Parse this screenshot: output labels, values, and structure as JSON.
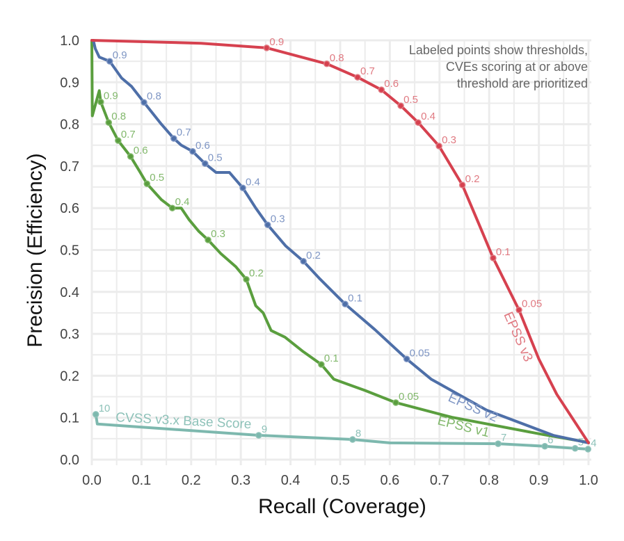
{
  "chart_data": {
    "type": "line",
    "title": "",
    "xlabel": "Recall (Coverage)",
    "ylabel": "Precision (Efficiency)",
    "xlim": [
      0,
      1
    ],
    "ylim": [
      0,
      1
    ],
    "grid": true,
    "xticks": [
      "0.0",
      "0.1",
      "0.2",
      "0.3",
      "0.4",
      "0.5",
      "0.6",
      "0.7",
      "0.8",
      "0.9",
      "1.0"
    ],
    "yticks": [
      "0.0",
      "0.1",
      "0.2",
      "0.3",
      "0.4",
      "0.5",
      "0.6",
      "0.7",
      "0.8",
      "0.9",
      "1.0"
    ],
    "annotation": [
      "Labeled points show thresholds,",
      "CVEs scoring at or above",
      "threshold are prioritized"
    ],
    "series": [
      {
        "name": "EPSS v3",
        "color": "#d6414f",
        "label_color": "#e07a82",
        "line": [
          [
            0,
            1.0
          ],
          [
            0.22,
            0.993
          ],
          [
            0.352,
            0.982
          ],
          [
            0.473,
            0.944
          ],
          [
            0.535,
            0.912
          ],
          [
            0.583,
            0.882
          ],
          [
            0.622,
            0.844
          ],
          [
            0.657,
            0.804
          ],
          [
            0.699,
            0.748
          ],
          [
            0.746,
            0.655
          ],
          [
            0.78,
            0.56
          ],
          [
            0.808,
            0.481
          ],
          [
            0.86,
            0.357
          ],
          [
            0.9,
            0.24
          ],
          [
            0.936,
            0.156
          ],
          [
            1.0,
            0.04
          ]
        ],
        "points": [
          {
            "label": "0.9",
            "x": 0.352,
            "y": 0.982
          },
          {
            "label": "0.8",
            "x": 0.473,
            "y": 0.944
          },
          {
            "label": "0.7",
            "x": 0.535,
            "y": 0.912
          },
          {
            "label": "0.6",
            "x": 0.583,
            "y": 0.882
          },
          {
            "label": "0.5",
            "x": 0.622,
            "y": 0.844
          },
          {
            "label": "0.4",
            "x": 0.657,
            "y": 0.804
          },
          {
            "label": "0.3",
            "x": 0.699,
            "y": 0.748
          },
          {
            "label": "0.2",
            "x": 0.746,
            "y": 0.655
          },
          {
            "label": "0.1",
            "x": 0.808,
            "y": 0.481
          },
          {
            "label": "0.05",
            "x": 0.86,
            "y": 0.357
          }
        ]
      },
      {
        "name": "EPSS v2",
        "color": "#4e6fa8",
        "label_color": "#7f96c4",
        "line": [
          [
            0.003,
            1.0
          ],
          [
            0.007,
            0.98
          ],
          [
            0.015,
            0.96
          ],
          [
            0.036,
            0.95
          ],
          [
            0.06,
            0.91
          ],
          [
            0.08,
            0.89
          ],
          [
            0.105,
            0.852
          ],
          [
            0.14,
            0.8
          ],
          [
            0.165,
            0.766
          ],
          [
            0.18,
            0.75
          ],
          [
            0.203,
            0.735
          ],
          [
            0.228,
            0.706
          ],
          [
            0.25,
            0.685
          ],
          [
            0.277,
            0.685
          ],
          [
            0.304,
            0.648
          ],
          [
            0.33,
            0.6
          ],
          [
            0.354,
            0.56
          ],
          [
            0.39,
            0.51
          ],
          [
            0.426,
            0.473
          ],
          [
            0.46,
            0.43
          ],
          [
            0.51,
            0.371
          ],
          [
            0.57,
            0.31
          ],
          [
            0.634,
            0.24
          ],
          [
            0.683,
            0.192
          ],
          [
            0.795,
            0.118
          ],
          [
            0.929,
            0.058
          ],
          [
            1.0,
            0.04
          ]
        ],
        "points": [
          {
            "label": "0.9",
            "x": 0.036,
            "y": 0.95
          },
          {
            "label": "0.8",
            "x": 0.105,
            "y": 0.852
          },
          {
            "label": "0.7",
            "x": 0.165,
            "y": 0.766
          },
          {
            "label": "0.6",
            "x": 0.203,
            "y": 0.735
          },
          {
            "label": "0.5",
            "x": 0.228,
            "y": 0.706
          },
          {
            "label": "0.4",
            "x": 0.304,
            "y": 0.648
          },
          {
            "label": "0.3",
            "x": 0.354,
            "y": 0.56
          },
          {
            "label": "0.2",
            "x": 0.426,
            "y": 0.473
          },
          {
            "label": "0.1",
            "x": 0.51,
            "y": 0.371
          },
          {
            "label": "0.05",
            "x": 0.634,
            "y": 0.24
          }
        ]
      },
      {
        "name": "EPSS v1",
        "color": "#5a9e3e",
        "label_color": "#82b86c",
        "line": [
          [
            0,
            1.0
          ],
          [
            0.001,
            0.82
          ],
          [
            0.015,
            0.88
          ],
          [
            0.018,
            0.853
          ],
          [
            0.034,
            0.804
          ],
          [
            0.053,
            0.761
          ],
          [
            0.078,
            0.723
          ],
          [
            0.095,
            0.69
          ],
          [
            0.111,
            0.658
          ],
          [
            0.14,
            0.62
          ],
          [
            0.162,
            0.6
          ],
          [
            0.18,
            0.6
          ],
          [
            0.196,
            0.572
          ],
          [
            0.215,
            0.545
          ],
          [
            0.234,
            0.524
          ],
          [
            0.26,
            0.491
          ],
          [
            0.29,
            0.46
          ],
          [
            0.311,
            0.43
          ],
          [
            0.33,
            0.367
          ],
          [
            0.345,
            0.35
          ],
          [
            0.361,
            0.308
          ],
          [
            0.389,
            0.292
          ],
          [
            0.424,
            0.259
          ],
          [
            0.462,
            0.227
          ],
          [
            0.487,
            0.192
          ],
          [
            0.55,
            0.165
          ],
          [
            0.612,
            0.136
          ],
          [
            0.725,
            0.101
          ],
          [
            0.908,
            0.06
          ],
          [
            1.0,
            0.041
          ]
        ],
        "points": [
          {
            "label": "0.9",
            "x": 0.018,
            "y": 0.853
          },
          {
            "label": "0.8",
            "x": 0.034,
            "y": 0.804
          },
          {
            "label": "0.7",
            "x": 0.053,
            "y": 0.761
          },
          {
            "label": "0.6",
            "x": 0.078,
            "y": 0.723
          },
          {
            "label": "0.5",
            "x": 0.111,
            "y": 0.658
          },
          {
            "label": "0.4",
            "x": 0.162,
            "y": 0.6
          },
          {
            "label": "0.3",
            "x": 0.234,
            "y": 0.524
          },
          {
            "label": "0.2",
            "x": 0.311,
            "y": 0.43
          },
          {
            "label": "0.1",
            "x": 0.462,
            "y": 0.227
          },
          {
            "label": "0.05",
            "x": 0.612,
            "y": 0.136
          }
        ]
      },
      {
        "name": "CVSS v3.x Base Score",
        "color": "#7db8ae",
        "label_color": "#8ec2b9",
        "line": [
          [
            0.008,
            0.108
          ],
          [
            0.011,
            0.085
          ],
          [
            0.336,
            0.058
          ],
          [
            0.525,
            0.048
          ],
          [
            0.6,
            0.04
          ],
          [
            0.818,
            0.038
          ],
          [
            0.912,
            0.032
          ],
          [
            0.973,
            0.027
          ],
          [
            0.999,
            0.025
          ]
        ],
        "points": [
          {
            "label": "10",
            "x": 0.008,
            "y": 0.108
          },
          {
            "label": "9",
            "x": 0.336,
            "y": 0.058
          },
          {
            "label": "8",
            "x": 0.525,
            "y": 0.048
          },
          {
            "label": "7",
            "x": 0.818,
            "y": 0.038
          },
          {
            "label": "6",
            "x": 0.912,
            "y": 0.032
          },
          {
            "label": "5",
            "x": 0.973,
            "y": 0.027
          },
          {
            "label": "4",
            "x": 0.999,
            "y": 0.025
          }
        ]
      }
    ]
  }
}
